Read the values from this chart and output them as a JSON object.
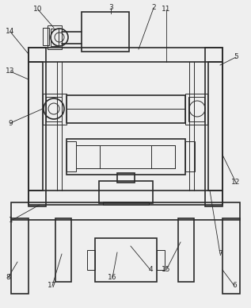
{
  "bg_color": "#efefef",
  "line_color": "#2a2a2a",
  "lw": 1.2,
  "tlw": 0.7,
  "fig_w": 3.17,
  "fig_h": 3.88,
  "dpi": 100
}
